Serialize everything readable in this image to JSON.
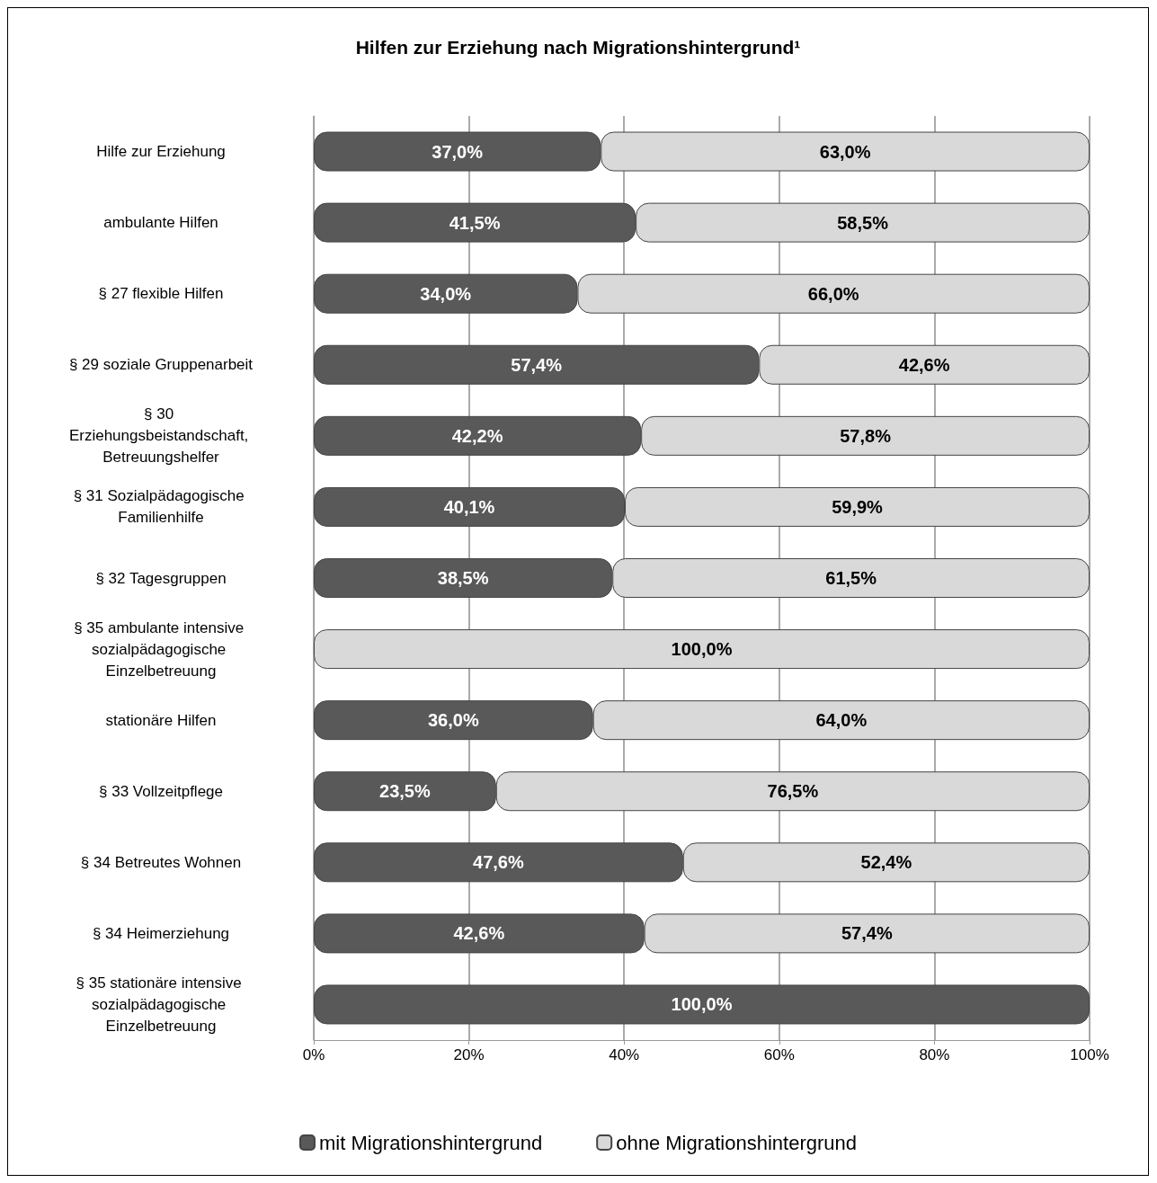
{
  "chart_data": {
    "type": "bar",
    "title": "Hilfen zur Erziehung nach Migrationshintergrund¹",
    "orientation": "horizontal",
    "stacked": true,
    "categories": [
      "Hilfe zur Erziehung",
      "ambulante Hilfen",
      "§ 27 flexible Hilfen",
      "§ 29 soziale Gruppenarbeit",
      "§ 30 Erziehungsbeistandschaft, Betreuungshelfer",
      "§ 31 Sozialpädagogische Familienhilfe",
      "§ 32 Tagesgruppen",
      "§ 35 ambulante intensive sozialpädagogische Einzelbetreuung",
      "stationäre Hilfen",
      "§ 33 Vollzeitpflege",
      "§ 34 Betreutes Wohnen",
      "§ 34 Heimerziehung",
      "§ 35 stationäre intensive sozialpädagogische Einzelbetreuung"
    ],
    "series": [
      {
        "name": "mit Migrationshintergrund",
        "color": "#595959",
        "values": [
          37.0,
          41.5,
          34.0,
          57.4,
          42.2,
          40.1,
          38.5,
          0,
          36.0,
          23.5,
          47.6,
          42.6,
          100.0
        ],
        "value_labels": [
          "37,0%",
          "41,5%",
          "34,0%",
          "57,4%",
          "42,2%",
          "40,1%",
          "38,5%",
          null,
          "36,0%",
          "23,5%",
          "47,6%",
          "42,6%",
          "100,0%"
        ]
      },
      {
        "name": "ohne Migrationshintergrund",
        "color": "#d9d9d9",
        "values": [
          63.0,
          58.5,
          66.0,
          42.6,
          57.8,
          59.9,
          61.5,
          100.0,
          64.0,
          76.5,
          52.4,
          57.4,
          0
        ],
        "value_labels": [
          "63,0%",
          "58,5%",
          "66,0%",
          "42,6%",
          "57,8%",
          "59,9%",
          "61,5%",
          "100,0%",
          "64,0%",
          "76,5%",
          "52,4%",
          "57,4%",
          null
        ]
      }
    ],
    "xlim": [
      0,
      100
    ],
    "xticks": [
      {
        "value": 0,
        "label": "0%"
      },
      {
        "value": 20,
        "label": "20%"
      },
      {
        "value": 40,
        "label": "40%"
      },
      {
        "value": 60,
        "label": "60%"
      },
      {
        "value": 80,
        "label": "80%"
      },
      {
        "value": 100,
        "label": "100%"
      }
    ],
    "grid": "x",
    "legend": "bottom"
  }
}
